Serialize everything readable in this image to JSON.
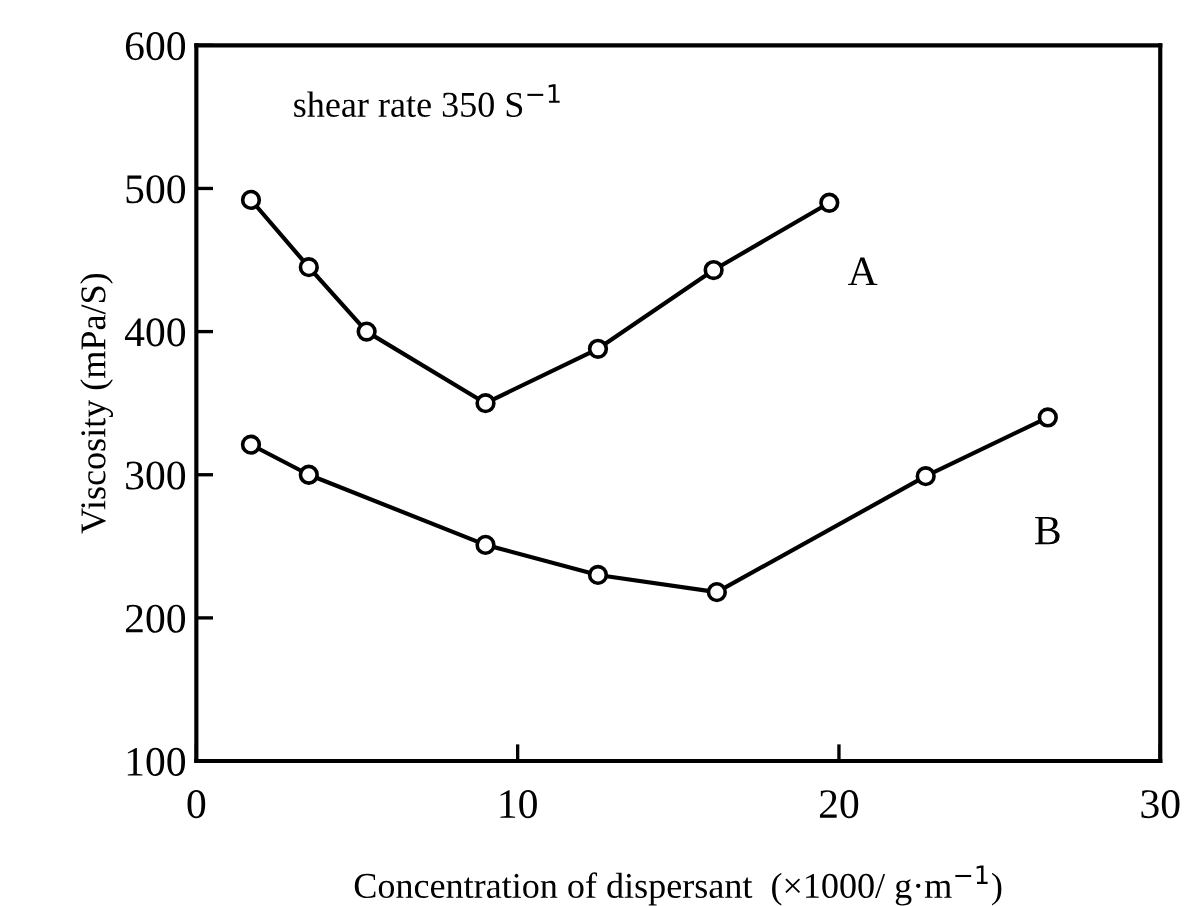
{
  "chart_data": {
    "type": "line",
    "xlabel": "Concentration of dispersant  (×1000/ g·m$^{−1}$)",
    "ylabel": "Viscosity (mPa/S)",
    "annotations": [
      "shear rate 350 S$^{−1}$"
    ],
    "series": [
      {
        "name": "A",
        "color": "#000000",
        "x": [
          1.7,
          3.5,
          5.3,
          9.0,
          12.5,
          16.1,
          19.7
        ],
        "values": [
          492,
          445,
          400,
          350,
          388,
          443,
          490
        ]
      },
      {
        "name": "B",
        "color": "#000000",
        "x": [
          1.7,
          3.5,
          9.0,
          12.5,
          16.2,
          22.7,
          26.5
        ],
        "values": [
          321,
          300,
          251,
          230,
          218,
          299,
          340
        ]
      }
    ],
    "xlim": [
      0,
      30
    ],
    "ylim": [
      100,
      600
    ],
    "xticks": [
      0,
      10,
      20,
      30
    ],
    "yticks": [
      100,
      200,
      300,
      400,
      500,
      600
    ],
    "marker": "circle",
    "line_style": "solid",
    "grid": false,
    "legend": false
  }
}
